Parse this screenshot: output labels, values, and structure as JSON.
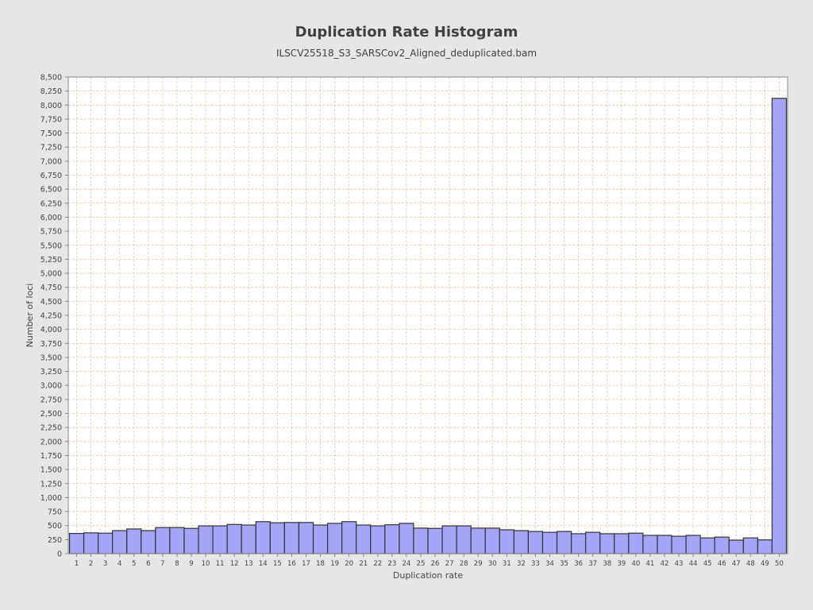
{
  "chart_data": {
    "type": "bar",
    "title": "Duplication Rate Histogram",
    "subtitle": "ILSCV25518_S3_SARSCov2_Aligned_deduplicated.bam",
    "xlabel": "Duplication rate",
    "ylabel": "Number of loci",
    "categories": [
      "1",
      "2",
      "3",
      "4",
      "5",
      "6",
      "7",
      "8",
      "9",
      "10",
      "11",
      "12",
      "13",
      "14",
      "15",
      "16",
      "17",
      "18",
      "19",
      "20",
      "21",
      "22",
      "23",
      "24",
      "25",
      "26",
      "27",
      "28",
      "29",
      "30",
      "31",
      "32",
      "33",
      "34",
      "35",
      "36",
      "37",
      "38",
      "39",
      "40",
      "41",
      "42",
      "43",
      "44",
      "45",
      "46",
      "47",
      "48",
      "49",
      "50"
    ],
    "values": [
      360,
      370,
      365,
      410,
      440,
      410,
      465,
      465,
      450,
      495,
      495,
      520,
      510,
      570,
      550,
      555,
      555,
      510,
      540,
      570,
      510,
      495,
      515,
      540,
      455,
      450,
      495,
      495,
      455,
      455,
      425,
      410,
      395,
      380,
      395,
      355,
      380,
      355,
      355,
      365,
      325,
      325,
      310,
      325,
      280,
      295,
      240,
      280,
      245,
      8120
    ],
    "ylim": [
      0,
      8500
    ],
    "yticks": [
      0,
      250,
      500,
      750,
      1000,
      1250,
      1500,
      1750,
      2000,
      2250,
      2500,
      2750,
      3000,
      3250,
      3500,
      3750,
      4000,
      4250,
      4500,
      4750,
      5000,
      5250,
      5500,
      5750,
      6000,
      6250,
      6500,
      6750,
      7000,
      7250,
      7500,
      7750,
      8000,
      8250,
      8500
    ],
    "ytick_labels": [
      "0",
      "250",
      "500",
      "750",
      "1,000",
      "1,250",
      "1,500",
      "1,750",
      "2,000",
      "2,250",
      "2,500",
      "2,750",
      "3,000",
      "3,250",
      "3,500",
      "3,750",
      "4,000",
      "4,250",
      "4,500",
      "4,750",
      "5,000",
      "5,250",
      "5,500",
      "5,750",
      "6,000",
      "6,250",
      "6,500",
      "6,750",
      "7,000",
      "7,250",
      "7,500",
      "7,750",
      "8,000",
      "8,250",
      "8,500"
    ],
    "grid": true,
    "legend": false,
    "colors": {
      "bar_fill": "#a5a5f7",
      "bar_stroke": "#333333",
      "grid": "#f0c8a8",
      "plot_bg": "#ffffff",
      "page_bg": "#e6e6e6"
    }
  }
}
